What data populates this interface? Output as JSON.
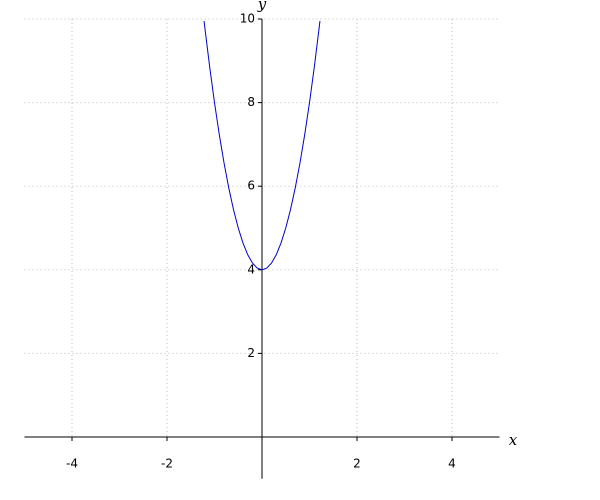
{
  "chart_data": {
    "type": "line",
    "x": [
      -1.22,
      -1.2,
      -1.1,
      -1.0,
      -0.9,
      -0.8,
      -0.7,
      -0.6,
      -0.5,
      -0.4,
      -0.3,
      -0.2,
      -0.1,
      0,
      0.1,
      0.2,
      0.3,
      0.4,
      0.5,
      0.6,
      0.7,
      0.8,
      0.9,
      1.0,
      1.1,
      1.2,
      1.22
    ],
    "values": [
      9.95,
      9.76,
      8.84,
      8.0,
      7.24,
      6.56,
      5.96,
      5.44,
      5.0,
      4.64,
      4.36,
      4.16,
      4.04,
      4.0,
      4.04,
      4.16,
      4.36,
      4.64,
      5.0,
      5.44,
      5.96,
      6.56,
      7.24,
      8.0,
      8.84,
      9.76,
      9.95
    ],
    "color": "#0000cc",
    "xlabel": "x",
    "ylabel": "y",
    "xlim": [
      -5,
      5
    ],
    "ylim": [
      -1,
      10
    ],
    "xticks": [
      -4,
      -2,
      2,
      4
    ],
    "yticks": [
      2,
      4,
      6,
      8,
      10
    ],
    "grid": true
  }
}
